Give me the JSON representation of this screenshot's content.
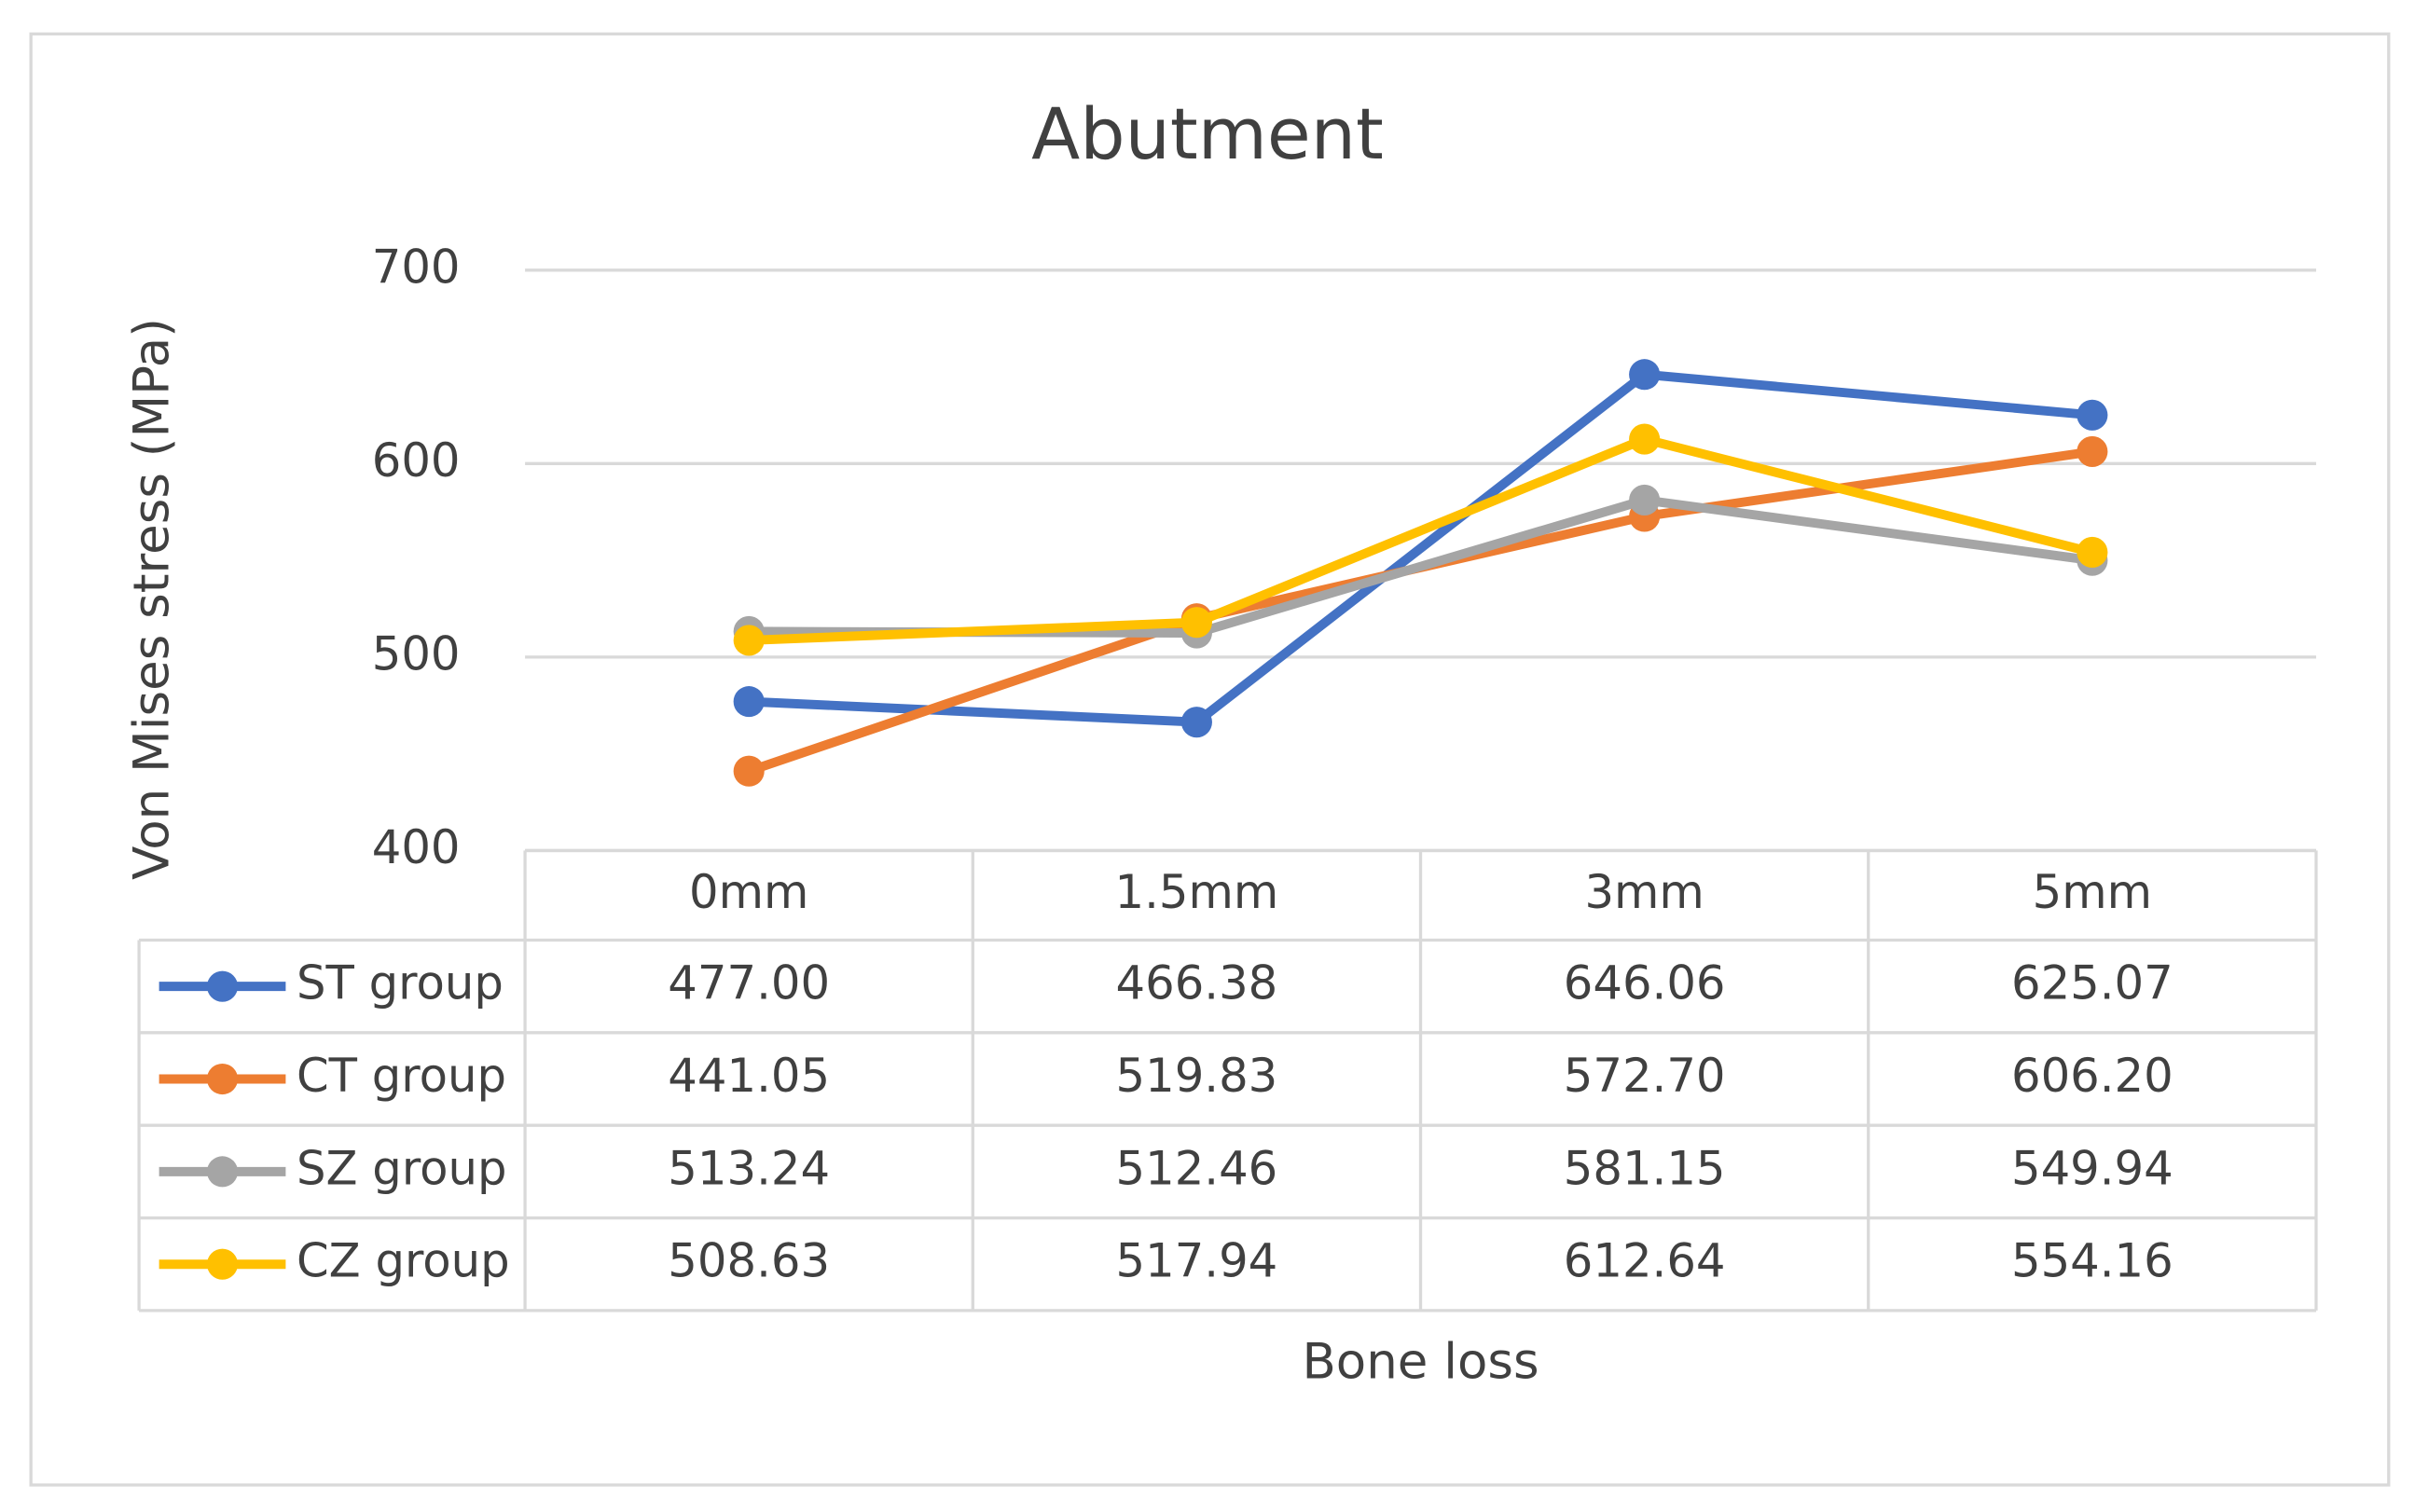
{
  "chart_data": {
    "type": "line",
    "title": "Abutment",
    "y_label": "Von Mises stress (MPa)",
    "x_label": "Bone loss",
    "categories": [
      "0mm",
      "1.5mm",
      "3mm",
      "5mm"
    ],
    "series": [
      {
        "name": "ST group",
        "color": "#4472c4",
        "values": [
          477,
          466.38,
          646.06,
          625.07
        ],
        "value_labels": [
          "477.00",
          "466.38",
          "646.06",
          "625.07"
        ]
      },
      {
        "name": "CT group",
        "color": "#ed7d31",
        "values": [
          441.05,
          519.83,
          572.7,
          606.2
        ],
        "value_labels": [
          "441.05",
          "519.83",
          "572.70",
          "606.20"
        ]
      },
      {
        "name": "SZ group",
        "color": "#a5a5a5",
        "values": [
          513.24,
          512.46,
          581.15,
          549.94
        ],
        "value_labels": [
          "513.24",
          "512.46",
          "581.15",
          "549.94"
        ]
      },
      {
        "name": "CZ group",
        "color": "#ffc000",
        "values": [
          508.63,
          517.94,
          612.64,
          554.16
        ],
        "value_labels": [
          "508.63",
          "517.94",
          "612.64",
          "554.16"
        ]
      }
    ],
    "ylim": [
      400,
      700
    ],
    "yticks": [
      400,
      500,
      600,
      700
    ],
    "grid": true
  }
}
